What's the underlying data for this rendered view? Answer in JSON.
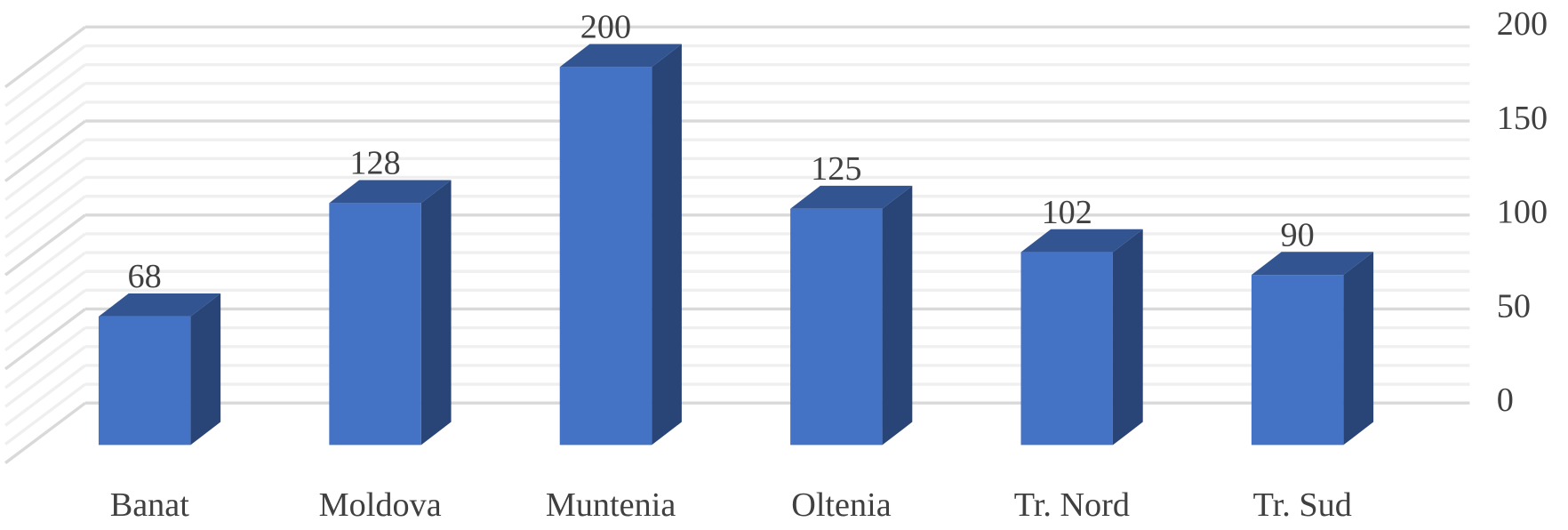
{
  "chart_data": {
    "type": "bar3d",
    "categories": [
      "Banat",
      "Moldova",
      "Muntenia",
      "Oltenia",
      "Tr. Nord",
      "Tr. Sud"
    ],
    "values": [
      68,
      128,
      200,
      125,
      102,
      90
    ],
    "color": "#4472c4",
    "ylim": [
      0,
      200
    ],
    "yticks": [
      0,
      50,
      100,
      150,
      200
    ],
    "grid": true,
    "y_axis_side": "right"
  }
}
